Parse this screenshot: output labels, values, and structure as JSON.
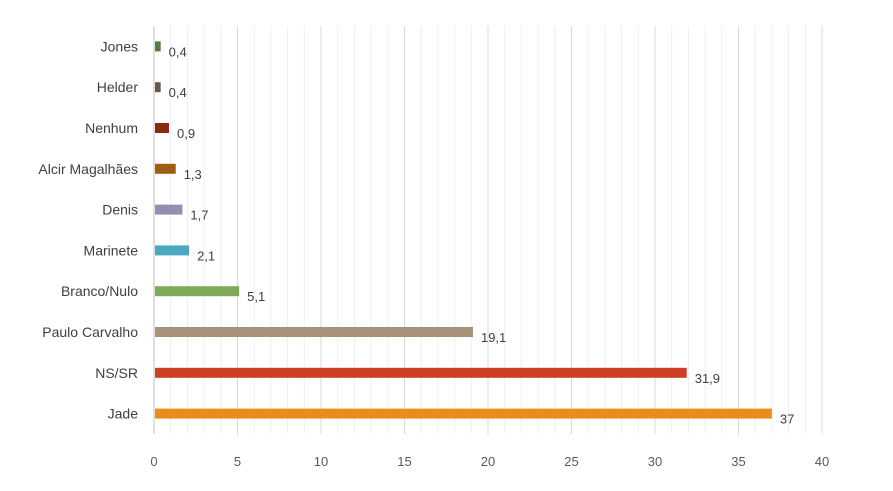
{
  "chart_data": {
    "type": "bar",
    "orientation": "horizontal",
    "categories": [
      "Jones",
      "Helder",
      "Nenhum",
      "Alcir Magalhães",
      "Denis",
      "Marinete",
      "Branco/Nulo",
      "Paulo Carvalho",
      "NS/SR",
      "Jade"
    ],
    "values": [
      0.4,
      0.4,
      0.9,
      1.3,
      1.7,
      2.1,
      5.1,
      19.1,
      31.9,
      37
    ],
    "value_labels": [
      "0,4",
      "0,4",
      "0,9",
      "1,3",
      "1,7",
      "2,1",
      "5,1",
      "19,1",
      "31,9",
      "37"
    ],
    "colors": [
      "#5a7a3a",
      "#6b5a48",
      "#8b2a14",
      "#a05c14",
      "#968cb4",
      "#4aa8c0",
      "#7faa5a",
      "#a8927a",
      "#cc3f25",
      "#ec8c1c"
    ],
    "xlim": [
      0,
      40
    ],
    "xticks": [
      "0",
      "5",
      "10",
      "15",
      "20",
      "25",
      "30",
      "35",
      "40"
    ],
    "grid": true,
    "title": "",
    "xlabel": "",
    "ylabel": ""
  }
}
